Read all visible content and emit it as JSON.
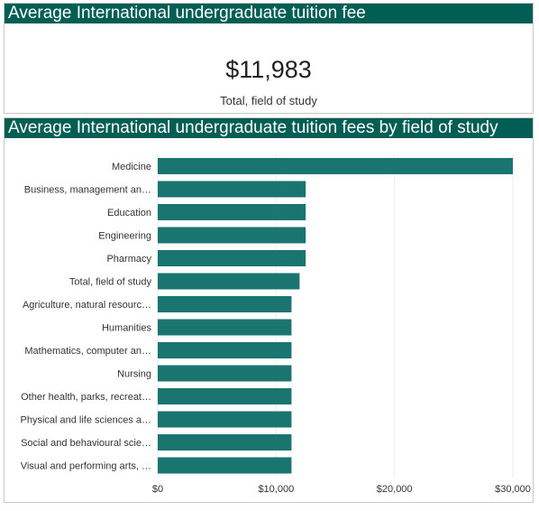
{
  "kpi": {
    "title": "Average International undergraduate tuition fee",
    "value": "$11,983",
    "label": "Total, field of study"
  },
  "chart_panel": {
    "title": "Average International undergraduate tuition fees by field of study"
  },
  "colors": {
    "header": "#005e55",
    "bar": "#1a7470"
  },
  "chart_data": {
    "type": "bar",
    "orientation": "horizontal",
    "title": "Average International undergraduate tuition fees by field of study",
    "categories": [
      "Medicine",
      "Business, management an…",
      "Education",
      "Engineering",
      "Pharmacy",
      "Total, field of study",
      "Agriculture, natural resourc…",
      "Humanities",
      "Mathematics, computer an…",
      "Nursing",
      "Other health, parks, recreat…",
      "Physical and life sciences a…",
      "Social and behavioural scie…",
      "Visual and performing arts, …"
    ],
    "values": [
      30000,
      12500,
      12500,
      12500,
      12500,
      11983,
      11300,
      11300,
      11300,
      11300,
      11300,
      11300,
      11300,
      11300
    ],
    "xlim": [
      0,
      30000
    ],
    "xticks": [
      0,
      10000,
      20000,
      30000
    ],
    "xtick_labels": [
      "$0",
      "$10,000",
      "$20,000",
      "$30,000"
    ],
    "grid": true
  }
}
